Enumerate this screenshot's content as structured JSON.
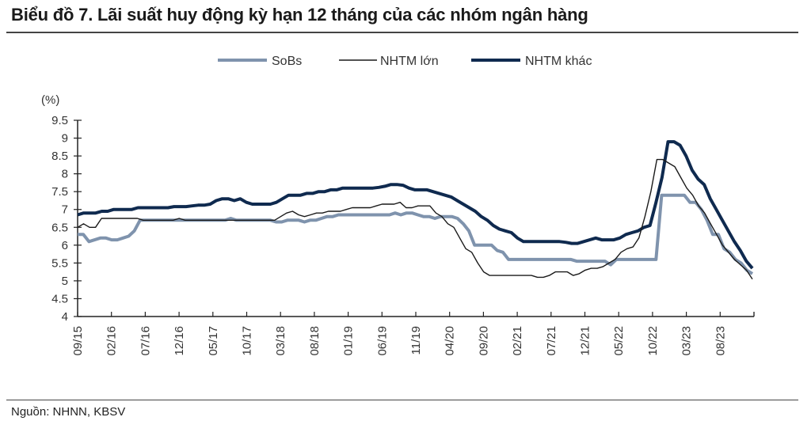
{
  "header": {
    "title": "Biểu đồ 7. Lãi suất huy động kỳ hạn 12 tháng của các nhóm ngân hàng"
  },
  "footer": {
    "source": "Nguồn: NHNN, KBSV"
  },
  "colors": {
    "sobs": "#7f93ad",
    "nhtm_lon": "#1a1a1a",
    "nhtm_khac": "#0f2a4f",
    "axis": "#222222"
  },
  "chart_data": {
    "type": "line",
    "title": "Biểu đồ 7. Lãi suất huy động kỳ hạn 12 tháng của các nhóm ngân hàng",
    "xlabel": "",
    "ylabel": "(%)",
    "ylim": [
      4,
      9.5
    ],
    "yticks": [
      4,
      4.5,
      5,
      5.5,
      6,
      6.5,
      7,
      7.5,
      8,
      8.5,
      9,
      9.5
    ],
    "ytick_labels": [
      "4",
      "4.5",
      "5",
      "5.5",
      "6",
      "6.5",
      "7",
      "7.5",
      "8",
      "8.5",
      "9",
      "9.5"
    ],
    "x_tick_labels": [
      "09/15",
      "02/16",
      "07/16",
      "12/16",
      "05/17",
      "10/17",
      "03/18",
      "08/18",
      "01/19",
      "06/19",
      "11/19",
      "04/20",
      "09/20",
      "02/21",
      "07/21",
      "12/21",
      "05/22",
      "10/22",
      "03/23",
      "08/23"
    ],
    "x_tick_interval_months": 5,
    "x_start": "09/15",
    "grid": false,
    "legend_position": "top",
    "series": [
      {
        "name": "SoBs",
        "values": [
          6.3,
          6.3,
          6.1,
          6.15,
          6.2,
          6.2,
          6.15,
          6.15,
          6.2,
          6.25,
          6.4,
          6.7,
          6.7,
          6.7,
          6.7,
          6.7,
          6.7,
          6.7,
          6.7,
          6.7,
          6.7,
          6.7,
          6.7,
          6.7,
          6.7,
          6.7,
          6.7,
          6.75,
          6.7,
          6.7,
          6.7,
          6.7,
          6.7,
          6.7,
          6.7,
          6.65,
          6.65,
          6.7,
          6.7,
          6.7,
          6.65,
          6.7,
          6.7,
          6.75,
          6.8,
          6.8,
          6.85,
          6.85,
          6.85,
          6.85,
          6.85,
          6.85,
          6.85,
          6.85,
          6.85,
          6.85,
          6.9,
          6.85,
          6.9,
          6.9,
          6.85,
          6.8,
          6.8,
          6.75,
          6.8,
          6.8,
          6.8,
          6.75,
          6.6,
          6.4,
          6.0,
          6.0,
          6.0,
          6.0,
          5.85,
          5.8,
          5.6,
          5.6,
          5.6,
          5.6,
          5.6,
          5.6,
          5.6,
          5.6,
          5.6,
          5.6,
          5.6,
          5.6,
          5.55,
          5.55,
          5.55,
          5.55,
          5.55,
          5.55,
          5.45,
          5.6,
          5.6,
          5.6,
          5.6,
          5.6,
          5.6,
          5.6,
          5.6,
          7.4,
          7.4,
          7.4,
          7.4,
          7.4,
          7.2,
          7.2,
          7.0,
          6.7,
          6.3,
          6.3,
          5.9,
          5.8,
          5.6,
          5.5,
          5.3,
          5.2
        ],
        "color": "#7f93ad"
      },
      {
        "name": "NHTM lớn",
        "values": [
          6.5,
          6.6,
          6.5,
          6.5,
          6.75,
          6.75,
          6.75,
          6.75,
          6.75,
          6.75,
          6.75,
          6.7,
          6.7,
          6.7,
          6.7,
          6.7,
          6.7,
          6.75,
          6.7,
          6.7,
          6.7,
          6.7,
          6.7,
          6.7,
          6.7,
          6.7,
          6.7,
          6.7,
          6.7,
          6.7,
          6.7,
          6.7,
          6.7,
          6.7,
          6.8,
          6.9,
          6.95,
          6.85,
          6.8,
          6.85,
          6.9,
          6.9,
          6.95,
          6.95,
          6.95,
          7.0,
          7.05,
          7.05,
          7.05,
          7.05,
          7.1,
          7.15,
          7.15,
          7.15,
          7.2,
          7.05,
          7.05,
          7.1,
          7.1,
          7.1,
          6.9,
          6.8,
          6.6,
          6.5,
          6.2,
          5.9,
          5.8,
          5.5,
          5.25,
          5.15,
          5.15,
          5.15,
          5.15,
          5.15,
          5.15,
          5.15,
          5.15,
          5.1,
          5.1,
          5.15,
          5.25,
          5.25,
          5.25,
          5.15,
          5.2,
          5.3,
          5.35,
          5.35,
          5.4,
          5.5,
          5.6,
          5.8,
          5.9,
          5.95,
          6.2,
          6.8,
          7.5,
          8.4,
          8.4,
          8.3,
          8.2,
          7.9,
          7.6,
          7.4,
          7.1,
          6.9,
          6.6,
          6.3,
          6.0,
          5.8,
          5.6,
          5.45,
          5.3,
          5.05
        ],
        "color": "#1a1a1a"
      },
      {
        "name": "NHTM khác",
        "values": [
          6.85,
          6.9,
          6.9,
          6.9,
          6.95,
          6.95,
          7.0,
          7.0,
          7.0,
          7.0,
          7.05,
          7.05,
          7.05,
          7.05,
          7.05,
          7.05,
          7.08,
          7.08,
          7.08,
          7.1,
          7.12,
          7.12,
          7.15,
          7.25,
          7.3,
          7.3,
          7.25,
          7.3,
          7.2,
          7.15,
          7.15,
          7.15,
          7.15,
          7.2,
          7.3,
          7.4,
          7.4,
          7.4,
          7.45,
          7.45,
          7.5,
          7.5,
          7.55,
          7.55,
          7.6,
          7.6,
          7.6,
          7.6,
          7.6,
          7.6,
          7.62,
          7.65,
          7.7,
          7.7,
          7.68,
          7.6,
          7.55,
          7.55,
          7.55,
          7.5,
          7.45,
          7.4,
          7.35,
          7.25,
          7.15,
          7.05,
          6.95,
          6.8,
          6.7,
          6.55,
          6.45,
          6.4,
          6.35,
          6.2,
          6.1,
          6.1,
          6.1,
          6.1,
          6.1,
          6.1,
          6.1,
          6.08,
          6.05,
          6.05,
          6.1,
          6.15,
          6.2,
          6.15,
          6.15,
          6.15,
          6.2,
          6.3,
          6.35,
          6.4,
          6.5,
          6.55,
          7.2,
          7.9,
          8.9,
          8.9,
          8.8,
          8.5,
          8.1,
          7.85,
          7.7,
          7.3,
          7.0,
          6.7,
          6.4,
          6.1,
          5.85,
          5.55,
          5.35
        ],
        "color": "#0f2a4f"
      }
    ]
  },
  "legend": {
    "items": [
      {
        "label": "SoBs",
        "color": "#7f93ad"
      },
      {
        "label": "NHTM lớn",
        "color": "#1a1a1a"
      },
      {
        "label": "NHTM khác",
        "color": "#0f2a4f"
      }
    ]
  }
}
